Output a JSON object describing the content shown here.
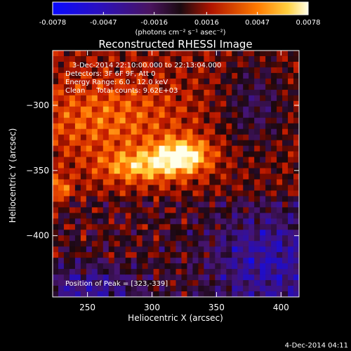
{
  "chart_data": {
    "type": "heatmap",
    "title": "Reconstructed RHESSI Image",
    "xlabel": "Heliocentric X (arcsec)",
    "ylabel": "Heliocentric Y (arcsec)",
    "xlim": [
      223,
      414
    ],
    "ylim": [
      -447,
      -258
    ],
    "xticks": [
      250,
      300,
      350,
      400
    ],
    "yticks": [
      -300,
      -350,
      -400
    ],
    "colorbar": {
      "range": [
        -0.0078,
        0.0078
      ],
      "ticks": [
        "-0.0078",
        "-0.0047",
        "-0.0016",
        "0.0016",
        "0.0047",
        "0.0078"
      ],
      "unit_label": "(photons cm⁻² s⁻¹ asec⁻²)"
    },
    "annotations": [
      "3-Dec-2014 22:10:00.000 to 22:13:04.000",
      "Detectors: 3F 6F 9F, Att 0",
      "Energy Range: 6.0 - 12.0 keV",
      "Clean     Total counts: 9.62E+03"
    ],
    "peak_label": "Position of Peak = [323,-339]",
    "peak": [
      323,
      -339
    ],
    "footer_timestamp": "4-Dec-2014 04:11",
    "colors": {
      "background": "#000000",
      "foreground": "#ffffff"
    }
  }
}
